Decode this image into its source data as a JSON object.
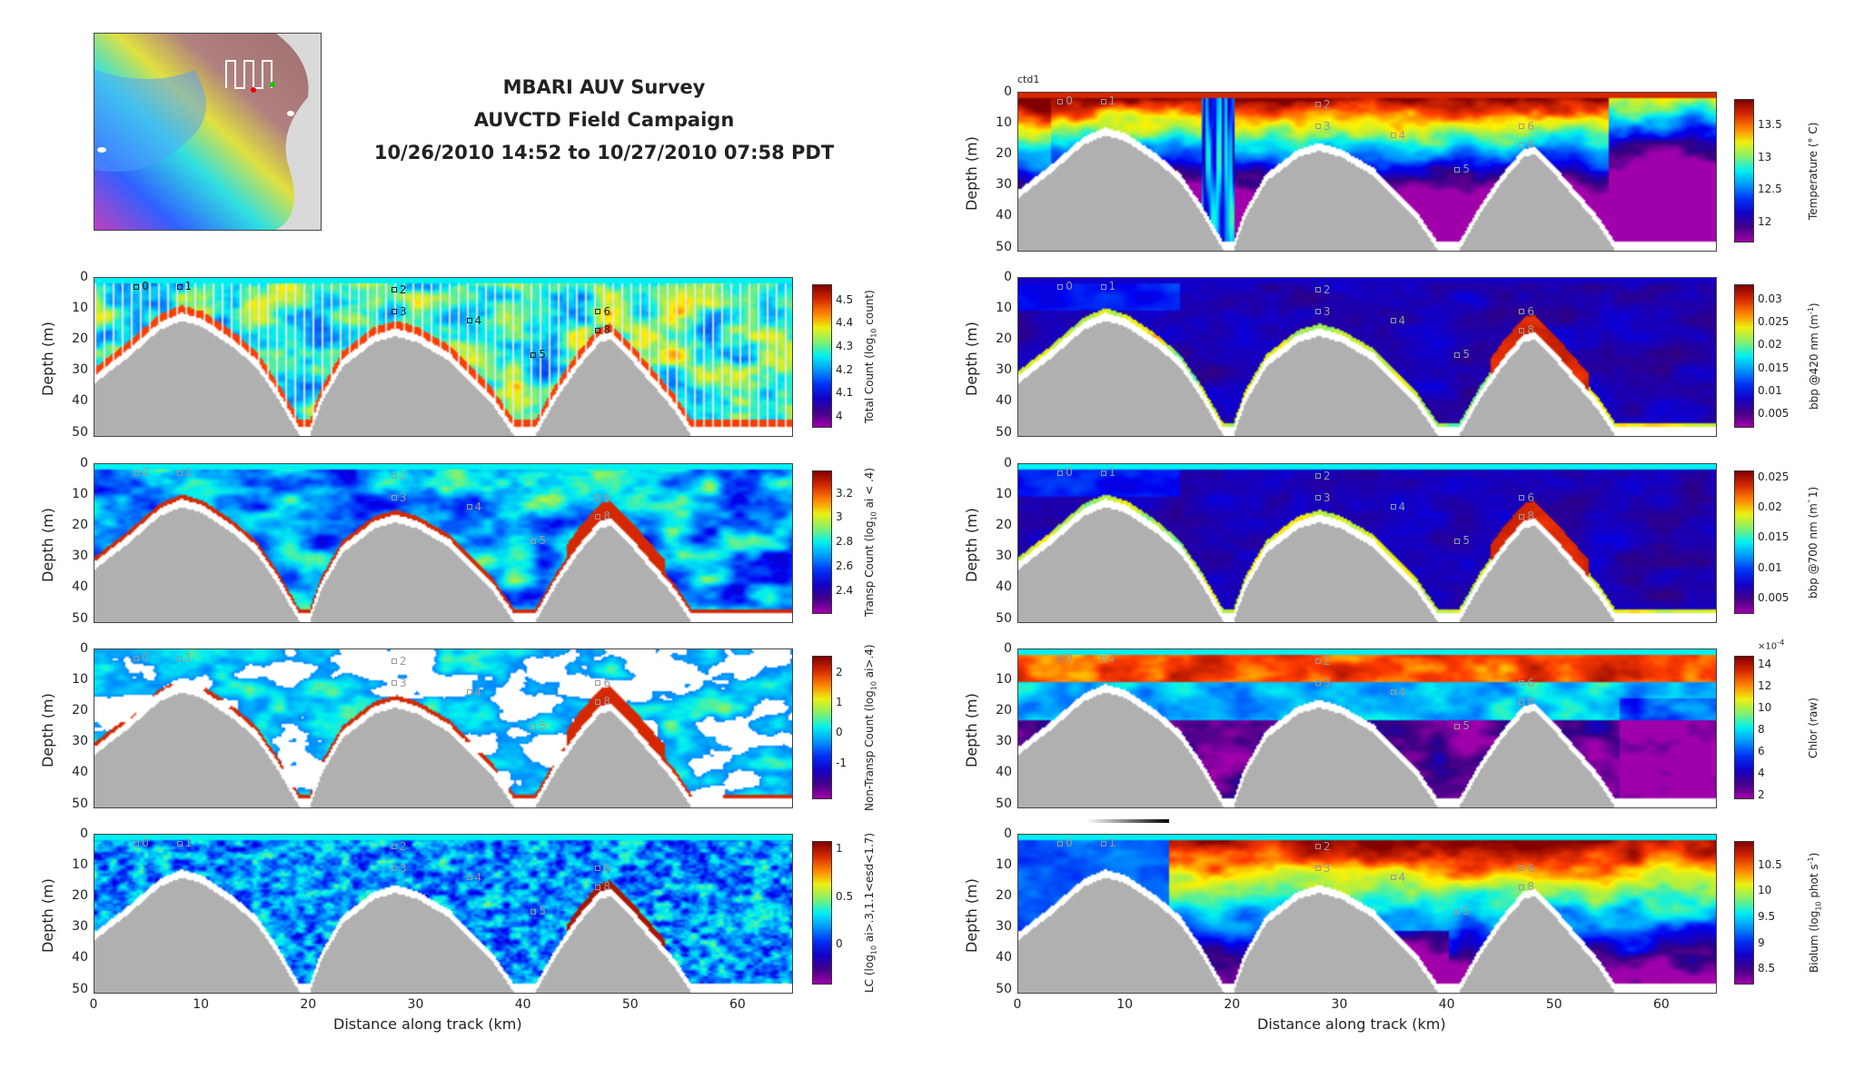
{
  "header": {
    "line1": "MBARI AUV Survey",
    "line2": "AUVCTD Field Campaign",
    "line3": "10/26/2010 14:52 to 10/27/2010 07:58 PDT"
  },
  "chart_data": {
    "type": "heatmap",
    "xlabel": "Distance along track (km)",
    "ylabel": "Depth (m)",
    "xlim": [
      0,
      65
    ],
    "ylim": [
      50,
      0
    ],
    "xticks": [
      0,
      10,
      20,
      30,
      40,
      50,
      60
    ],
    "yticks": [
      0,
      10,
      20,
      30,
      40,
      50
    ],
    "terrain_profile_km_m": [
      [
        0,
        33
      ],
      [
        3,
        25
      ],
      [
        6,
        16
      ],
      [
        8,
        13
      ],
      [
        10,
        15
      ],
      [
        13,
        22
      ],
      [
        15,
        28
      ],
      [
        17,
        38
      ],
      [
        19,
        50
      ],
      [
        20,
        50
      ],
      [
        21,
        40
      ],
      [
        23,
        28
      ],
      [
        26,
        20
      ],
      [
        28,
        18
      ],
      [
        30,
        20
      ],
      [
        33,
        26
      ],
      [
        35,
        33
      ],
      [
        37,
        40
      ],
      [
        39,
        50
      ],
      [
        41,
        50
      ],
      [
        43,
        38
      ],
      [
        45,
        28
      ],
      [
        47,
        20
      ],
      [
        48,
        19
      ],
      [
        50,
        26
      ],
      [
        52,
        34
      ],
      [
        54,
        42
      ],
      [
        55.5,
        50
      ],
      [
        65,
        50
      ]
    ],
    "stations": [
      {
        "label": "0",
        "x": 4,
        "depth": 3
      },
      {
        "label": "1",
        "x": 8,
        "depth": 3
      },
      {
        "label": "2",
        "x": 28,
        "depth": 4
      },
      {
        "label": "3",
        "x": 28,
        "depth": 11
      },
      {
        "label": "4",
        "x": 35,
        "depth": 14
      },
      {
        "label": "5",
        "x": 41,
        "depth": 25
      },
      {
        "label": "6",
        "x": 47,
        "depth": 11
      },
      {
        "label": "8",
        "x": 47,
        "depth": 17
      }
    ],
    "panels": [
      {
        "id": "total-count",
        "column": "left",
        "field": "total",
        "colorbar": {
          "label": [
            "Total Count (log",
            "10",
            " count)"
          ],
          "clim": [
            3.96,
            4.57
          ],
          "ticks": [
            "4",
            "4.1",
            "4.2",
            "4.3",
            "4.4",
            "4.5"
          ],
          "tickvals": [
            4,
            4.1,
            4.2,
            4.3,
            4.4,
            4.5
          ]
        }
      },
      {
        "id": "transp-count",
        "column": "left",
        "field": "transp",
        "colorbar": {
          "label": [
            "Transp Count (log",
            "10",
            " ai < .4)"
          ],
          "clim": [
            2.23,
            3.39
          ],
          "ticks": [
            "2.4",
            "2.6",
            "2.8",
            "3",
            "3.2"
          ],
          "tickvals": [
            2.4,
            2.6,
            2.8,
            3,
            3.2
          ]
        }
      },
      {
        "id": "non-transp-count",
        "column": "left",
        "field": "nontransp",
        "colorbar": {
          "label": [
            "Non-Transp Count (log",
            "10",
            " ai>.4)"
          ],
          "clim": [
            -2.12,
            2.56
          ],
          "ticks": [
            "-1",
            "0",
            "1",
            "2"
          ],
          "tickvals": [
            -1,
            0,
            1,
            2
          ]
        }
      },
      {
        "id": "lc",
        "column": "left",
        "field": "lc",
        "colorbar": {
          "label": [
            "LC (log",
            "10",
            " ai>.3,1.1<esd<1.7)"
          ],
          "clim": [
            -0.4,
            1.09
          ],
          "ticks": [
            "0",
            "0.5",
            "1"
          ],
          "tickvals": [
            0,
            0.5,
            1
          ]
        }
      },
      {
        "id": "temperature",
        "column": "right",
        "field": "temp",
        "tag": "ctd1",
        "colorbar": {
          "label": [
            "Temperature (° C)",
            "",
            ""
          ],
          "clim": [
            11.72,
            13.91
          ],
          "ticks": [
            "12",
            "12.5",
            "13",
            "13.5"
          ],
          "tickvals": [
            12,
            12.5,
            13,
            13.5
          ]
        }
      },
      {
        "id": "bbp420",
        "column": "right",
        "field": "bbp",
        "colorbar": {
          "label": [
            "bbp @420 nm (m",
            "-1",
            ")"
          ],
          "sup": true,
          "clim": [
            0.0024,
            0.0334
          ],
          "ticks": [
            "0.005",
            "0.01",
            "0.015",
            "0.02",
            "0.025",
            "0.03"
          ],
          "tickvals": [
            0.005,
            0.01,
            0.015,
            0.02,
            0.025,
            0.03
          ]
        }
      },
      {
        "id": "bbp700",
        "column": "right",
        "field": "bbp2",
        "colorbar": {
          "label": [
            "bbp @700 nm (m`1)",
            "",
            ""
          ],
          "clim": [
            0.0027,
            0.0262
          ],
          "ticks": [
            "0.005",
            "0.01",
            "0.015",
            "0.02",
            "0.025"
          ],
          "tickvals": [
            0.005,
            0.01,
            0.015,
            0.02,
            0.025
          ]
        }
      },
      {
        "id": "chlor",
        "column": "right",
        "field": "chlor",
        "colorbar": {
          "label": [
            "Chlor (raw)",
            "",
            ""
          ],
          "clim": [
            1.8,
            14.8
          ],
          "ticks": [
            "2",
            "4",
            "6",
            "8",
            "10",
            "12",
            "14"
          ],
          "tickvals": [
            2,
            4,
            6,
            8,
            10,
            12,
            14
          ],
          "exponent": "×10",
          "exponent_power": "-4"
        }
      },
      {
        "id": "biolum",
        "column": "right",
        "field": "biolum",
        "colorbar": {
          "label": [
            "Biolum (log",
            "10",
            " phot s",
            "-1",
            ")"
          ],
          "clim": [
            8.24,
            10.97
          ],
          "ticks": [
            "8.5",
            "9",
            "9.5",
            "10",
            "10.5"
          ],
          "tickvals": [
            8.5,
            9,
            9.5,
            10,
            10.5
          ]
        }
      }
    ]
  }
}
